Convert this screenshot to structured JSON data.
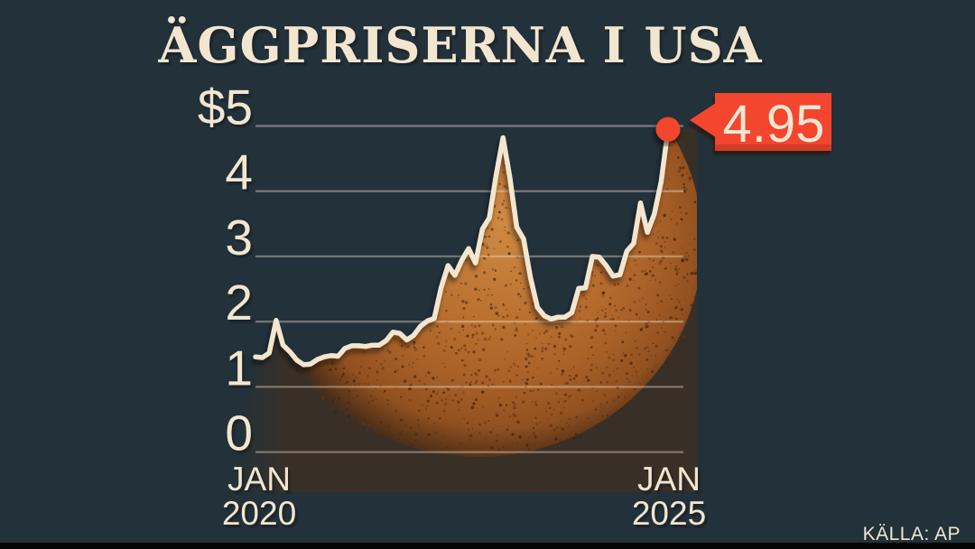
{
  "title": "ÄGGPRISERNA I USA",
  "source": "KÄLLA: AP",
  "callout": {
    "value": "4.95"
  },
  "colors": {
    "background": "#22313a",
    "cream": "#f2e6d0",
    "red": "#f4452f",
    "red_dark": "#a52c1b",
    "grid": "#f2e6d0",
    "bar": "#050505",
    "egg_base": "#4a2e18",
    "egg_stops": [
      [
        0,
        "#cf8a44",
        1
      ],
      [
        0.38,
        "#bb7231",
        1
      ],
      [
        0.62,
        "#ab6229",
        1
      ],
      [
        0.82,
        "#91501f",
        1
      ],
      [
        0.93,
        "#5e3517",
        0.85
      ],
      [
        1,
        "#3a2a1c",
        0
      ]
    ],
    "speckles": [
      "#4f2a0f",
      "#63350f",
      "#3f2008"
    ]
  },
  "chart_data": {
    "type": "area",
    "title": "ÄGGPRISERNA I USA",
    "x_range": [
      "2020-01",
      "2025-01"
    ],
    "freq": "monthly",
    "ylim": [
      0,
      5
    ],
    "grid": true,
    "y_ticks": [
      {
        "label": "$5",
        "value": 5
      },
      {
        "label": "4",
        "value": 4
      },
      {
        "label": "3",
        "value": 3
      },
      {
        "label": "2",
        "value": 2
      },
      {
        "label": "1",
        "value": 1
      },
      {
        "label": "0",
        "value": 0
      }
    ],
    "x_ticks": [
      {
        "line1": "JAN",
        "line2": "2020"
      },
      {
        "line1": "JAN",
        "line2": "2025"
      }
    ],
    "values": [
      1.46,
      1.45,
      1.52,
      2.02,
      1.64,
      1.54,
      1.41,
      1.34,
      1.35,
      1.42,
      1.46,
      1.48,
      1.47,
      1.59,
      1.63,
      1.63,
      1.62,
      1.64,
      1.64,
      1.71,
      1.84,
      1.82,
      1.72,
      1.79,
      1.93,
      2.01,
      2.05,
      2.52,
      2.86,
      2.71,
      2.94,
      3.12,
      2.9,
      3.42,
      3.59,
      4.25,
      4.82,
      4.21,
      3.45,
      3.27,
      2.67,
      2.22,
      2.09,
      2.04,
      2.07,
      2.07,
      2.14,
      2.51,
      2.52,
      3.0,
      2.99,
      2.86,
      2.7,
      2.72,
      3.08,
      3.2,
      3.82,
      3.37,
      3.65,
      4.15,
      4.95
    ],
    "last_point_label": "4.95",
    "source": "KÄLLA: AP"
  }
}
